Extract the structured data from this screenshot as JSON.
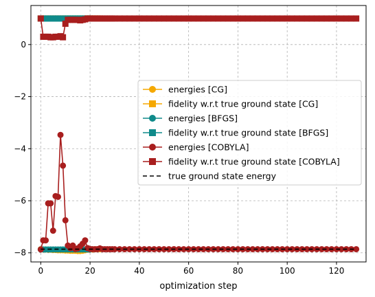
{
  "chart_data": {
    "type": "line",
    "title": "",
    "xlabel": "optimization step",
    "ylabel": "",
    "xlim": [
      -4,
      132
    ],
    "ylim": [
      -8.35,
      1.5
    ],
    "xticks": [
      0,
      20,
      40,
      60,
      80,
      100,
      120
    ],
    "yticks": [
      -8,
      -6,
      -4,
      -2,
      0
    ],
    "ytick_labels": [
      "−8",
      "−6",
      "−4",
      "−2",
      "0"
    ],
    "grid": true,
    "legend_position": "center-right",
    "series": [
      {
        "name": "energies [CG]",
        "color": "#f5a800",
        "marker": "circle",
        "x": [
          0,
          1,
          2,
          3,
          4,
          5,
          6,
          7,
          8,
          9,
          10,
          11,
          12,
          13,
          14,
          15,
          16,
          17,
          18,
          19,
          20,
          21,
          22,
          23,
          24
        ],
        "y": [
          -7.86,
          -7.87,
          -7.87,
          -7.88,
          -7.88,
          -7.89,
          -7.89,
          -7.9,
          -7.9,
          -7.9,
          -7.91,
          -7.91,
          -7.92,
          -7.92,
          -7.92,
          -7.93,
          -7.93,
          -7.92,
          -7.9,
          -7.88,
          -7.87,
          -7.87,
          -7.86,
          -7.86,
          -7.86
        ]
      },
      {
        "name": "fidelity w.r.t true ground state [CG]",
        "color": "#f5a800",
        "marker": "square",
        "x": [
          0,
          1,
          2,
          3,
          4,
          5,
          6,
          7,
          8,
          9,
          10,
          11,
          12,
          13,
          14,
          15,
          16,
          17,
          18,
          19,
          20,
          21,
          22,
          23,
          24
        ],
        "y": [
          1,
          1,
          1,
          1,
          1,
          1,
          1,
          1,
          1,
          1,
          1,
          1,
          1,
          1,
          1,
          1,
          1,
          1,
          1,
          1,
          1,
          1,
          1,
          1,
          1
        ]
      },
      {
        "name": "energies [BFGS]",
        "color": "#0f8a8a",
        "marker": "circle",
        "x": [
          0,
          1,
          2,
          3,
          4,
          5,
          6,
          7,
          8,
          9,
          10,
          11,
          12,
          13,
          14,
          15,
          16,
          17,
          18,
          19,
          20
        ],
        "y": [
          -7.87,
          -7.87,
          -7.87,
          -7.87,
          -7.87,
          -7.87,
          -7.87,
          -7.87,
          -7.87,
          -7.87,
          -7.87,
          -7.87,
          -7.87,
          -7.87,
          -7.87,
          -7.87,
          -7.87,
          -7.87,
          -7.87,
          -7.87,
          -7.87
        ]
      },
      {
        "name": "fidelity w.r.t true ground state [BFGS]",
        "color": "#0f8a8a",
        "marker": "square",
        "x": [
          0,
          1,
          2,
          3,
          4,
          5,
          6,
          7,
          8,
          9,
          10,
          11,
          12,
          13,
          14,
          15,
          16,
          17,
          18,
          19,
          20
        ],
        "y": [
          1,
          1,
          1,
          1,
          1,
          1,
          1,
          1,
          1,
          1,
          1,
          1,
          1,
          1,
          1,
          1,
          1,
          1,
          1,
          1,
          1
        ]
      },
      {
        "name": "energies [COBYLA]",
        "color": "#a81e1e",
        "marker": "circle",
        "x": [
          0,
          1,
          2,
          3,
          4,
          5,
          6,
          7,
          8,
          9,
          10,
          11,
          12,
          13,
          14,
          15,
          16,
          17,
          18,
          19,
          20,
          21,
          22,
          23,
          24,
          25,
          26,
          27,
          28,
          29,
          30,
          32,
          34,
          36,
          38,
          40,
          42,
          44,
          46,
          48,
          50,
          52,
          54,
          56,
          58,
          60,
          62,
          64,
          66,
          68,
          70,
          72,
          74,
          76,
          78,
          80,
          82,
          84,
          86,
          88,
          90,
          92,
          94,
          96,
          98,
          100,
          102,
          104,
          106,
          108,
          110,
          112,
          114,
          116,
          118,
          120,
          122,
          124,
          126,
          128
        ],
        "y": [
          -7.87,
          -7.52,
          -7.52,
          -6.1,
          -6.1,
          -7.15,
          -5.82,
          -5.85,
          -3.47,
          -4.65,
          -6.75,
          -7.72,
          -7.82,
          -7.72,
          -7.85,
          -7.83,
          -7.75,
          -7.65,
          -7.52,
          -7.82,
          -7.85,
          -7.86,
          -7.86,
          -7.86,
          -7.83,
          -7.86,
          -7.86,
          -7.86,
          -7.86,
          -7.86,
          -7.86,
          -7.86,
          -7.86,
          -7.86,
          -7.86,
          -7.86,
          -7.86,
          -7.86,
          -7.86,
          -7.86,
          -7.86,
          -7.86,
          -7.86,
          -7.86,
          -7.86,
          -7.86,
          -7.86,
          -7.86,
          -7.86,
          -7.86,
          -7.86,
          -7.86,
          -7.86,
          -7.86,
          -7.86,
          -7.86,
          -7.86,
          -7.86,
          -7.86,
          -7.86,
          -7.86,
          -7.86,
          -7.86,
          -7.86,
          -7.86,
          -7.86,
          -7.86,
          -7.86,
          -7.86,
          -7.86,
          -7.86,
          -7.86,
          -7.86,
          -7.86,
          -7.86,
          -7.86,
          -7.86,
          -7.86,
          -7.86,
          -7.86
        ]
      },
      {
        "name": "fidelity w.r.t true ground state [COBYLA]",
        "color": "#a81e1e",
        "marker": "square",
        "x": [
          0,
          1,
          2,
          3,
          4,
          5,
          6,
          7,
          8,
          9,
          10,
          11,
          12,
          13,
          14,
          15,
          16,
          17,
          18,
          19,
          20,
          21,
          22,
          23,
          24,
          25,
          26,
          27,
          28,
          29,
          30,
          32,
          34,
          36,
          38,
          40,
          42,
          44,
          46,
          48,
          50,
          52,
          54,
          56,
          58,
          60,
          62,
          64,
          66,
          68,
          70,
          72,
          74,
          76,
          78,
          80,
          82,
          84,
          86,
          88,
          90,
          92,
          94,
          96,
          98,
          100,
          102,
          104,
          106,
          108,
          110,
          112,
          114,
          116,
          118,
          120,
          122,
          124,
          126,
          128
        ],
        "y": [
          1,
          0.3,
          0.3,
          0.3,
          0.28,
          0.28,
          0.3,
          0.3,
          0.32,
          0.28,
          0.8,
          0.95,
          0.95,
          0.95,
          0.95,
          0.95,
          0.93,
          0.95,
          0.97,
          1,
          1,
          1,
          1,
          1,
          1,
          1,
          1,
          1,
          1,
          1,
          1,
          1,
          1,
          1,
          1,
          1,
          1,
          1,
          1,
          1,
          1,
          1,
          1,
          1,
          1,
          1,
          1,
          1,
          1,
          1,
          1,
          1,
          1,
          1,
          1,
          1,
          1,
          1,
          1,
          1,
          1,
          1,
          1,
          1,
          1,
          1,
          1,
          1,
          1,
          1,
          1,
          1,
          1,
          1,
          1,
          1,
          1,
          1,
          1,
          1
        ]
      },
      {
        "name": "true ground state energy",
        "color": "#000000",
        "marker": "none",
        "dashed": true,
        "x": [
          0,
          128
        ],
        "y": [
          -7.86,
          -7.86
        ]
      }
    ]
  }
}
